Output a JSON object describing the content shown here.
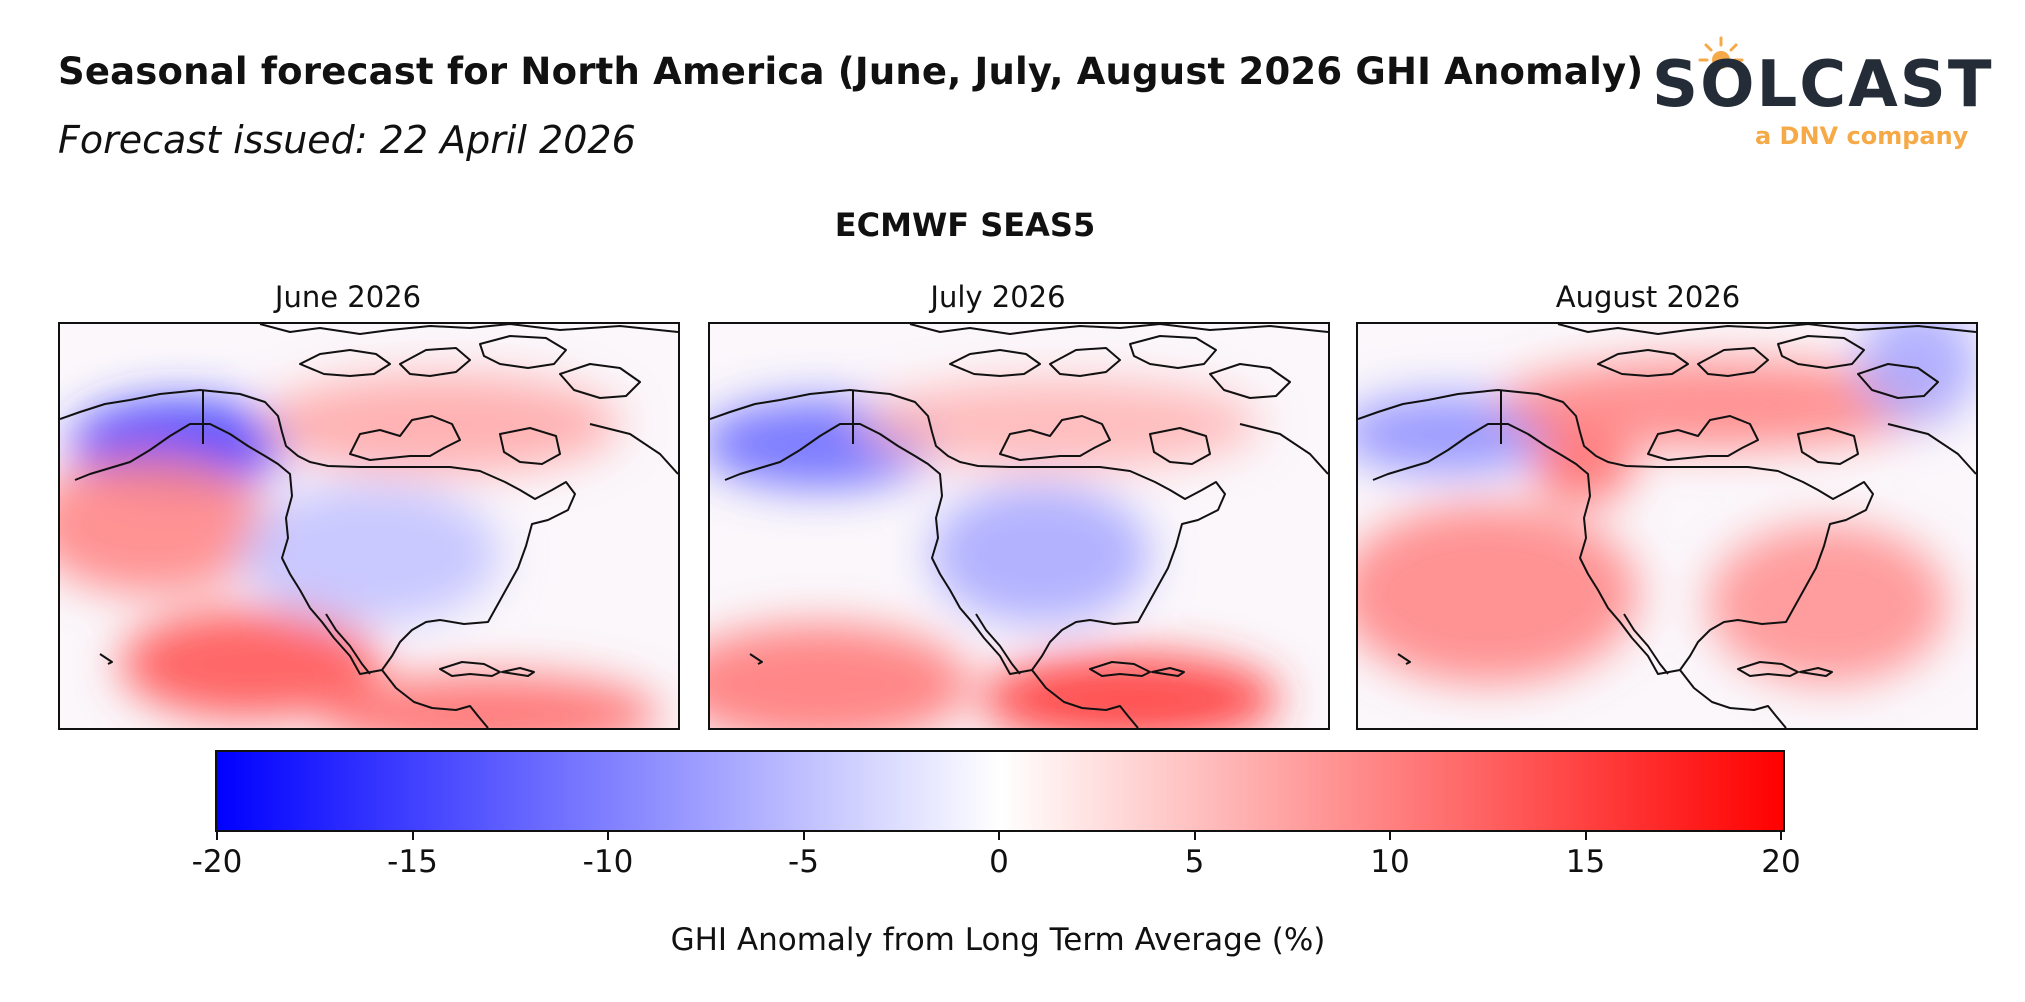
{
  "header": {
    "title": "Seasonal forecast for North America (June, July, August 2026 GHI Anomaly)",
    "subtitle": "Forecast issued: 22 April 2026"
  },
  "logo": {
    "wordmark": "SOLCAST",
    "tagline": "a DNV company",
    "colors": {
      "wordmark": "#242c38",
      "accent": "#f5a947"
    }
  },
  "model_title": "ECMWF SEAS5",
  "panels": [
    {
      "title": "June 2026",
      "anomaly_regions": [
        {
          "region": "Gulf of Alaska",
          "sign": "negative",
          "strength": 0.8
        },
        {
          "region": "Northeast Pacific off California",
          "sign": "positive",
          "strength": 0.5
        },
        {
          "region": "Tropical Pacific south of Hawaii",
          "sign": "positive",
          "strength": 0.7
        },
        {
          "region": "Central America / Pacific coast",
          "sign": "positive",
          "strength": 0.6
        },
        {
          "region": "Canadian Prairies / Hudson Bay",
          "sign": "positive",
          "strength": 0.35
        },
        {
          "region": "Contiguous United States interior",
          "sign": "negative",
          "strength": 0.25
        }
      ]
    },
    {
      "title": "July 2026",
      "anomaly_regions": [
        {
          "region": "Gulf of Alaska",
          "sign": "negative",
          "strength": 0.6
        },
        {
          "region": "Tropical Pacific south of Hawaii",
          "sign": "positive",
          "strength": 0.55
        },
        {
          "region": "Pacific coast of Mexico / Central America",
          "sign": "positive",
          "strength": 0.8
        },
        {
          "region": "Northern Canada",
          "sign": "positive",
          "strength": 0.3
        },
        {
          "region": "Central United States",
          "sign": "negative",
          "strength": 0.35
        }
      ]
    },
    {
      "title": "August 2026",
      "anomaly_regions": [
        {
          "region": "Gulf of Alaska",
          "sign": "negative",
          "strength": 0.45
        },
        {
          "region": "Northwest coast / British Columbia",
          "sign": "positive",
          "strength": 0.6
        },
        {
          "region": "Northern Canada",
          "sign": "positive",
          "strength": 0.5
        },
        {
          "region": "Eastern Pacific off Mexico",
          "sign": "positive",
          "strength": 0.5
        },
        {
          "region": "Southeastern United States",
          "sign": "positive",
          "strength": 0.45
        },
        {
          "region": "Labrador Sea",
          "sign": "negative",
          "strength": 0.35
        }
      ]
    }
  ],
  "colorbar": {
    "label": "GHI Anomaly from Long Term Average (%)",
    "range": [
      -20,
      20
    ],
    "ticks": [
      "-20",
      "-15",
      "-10",
      "-5",
      "0",
      "5",
      "10",
      "15",
      "20"
    ],
    "colormap": "bwr",
    "colors": {
      "min": "#0000ff",
      "mid": "#ffffff",
      "max": "#ff0000"
    }
  }
}
